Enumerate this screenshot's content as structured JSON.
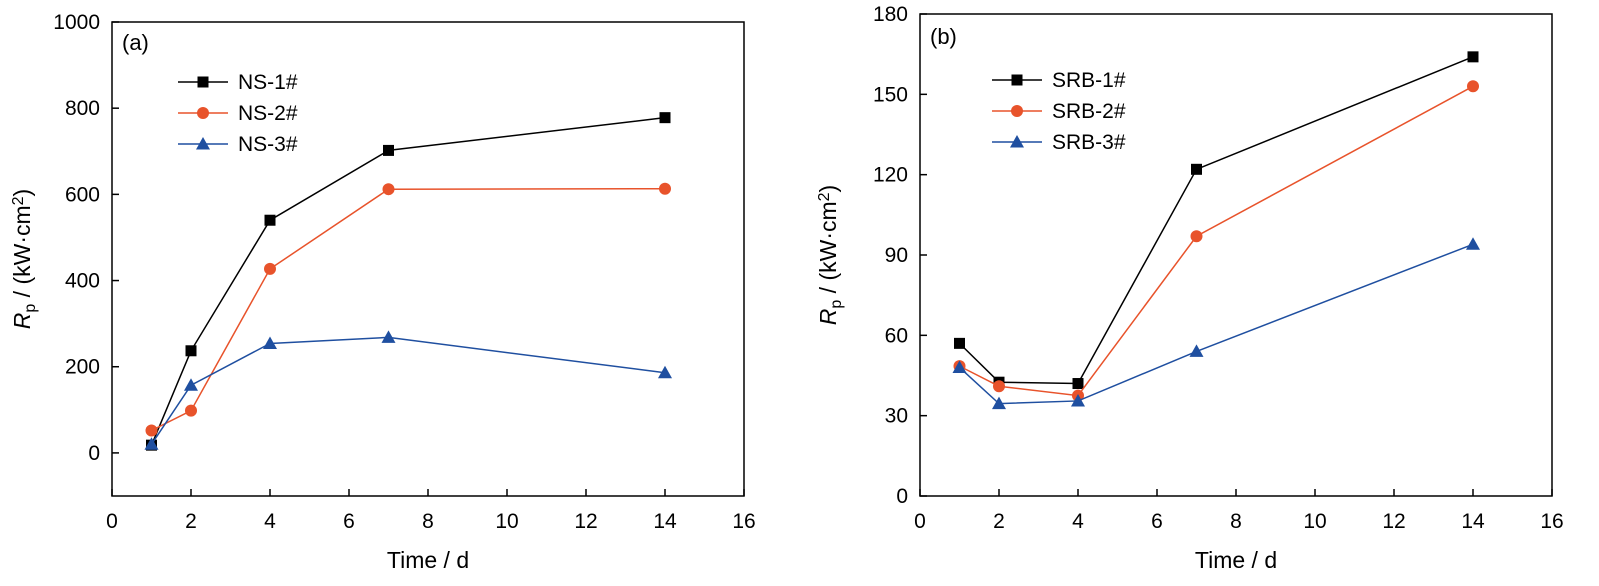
{
  "chart_data": [
    {
      "type": "line",
      "panel_label": "(a)",
      "xlabel": "Time / d",
      "ylabel": {
        "symbol": "R",
        "subscript": "p",
        "unit_prefix": " / (kW·cm",
        "unit_sup": "2",
        "unit_suffix": ")"
      },
      "xlim": [
        0,
        16
      ],
      "ylim": [
        -100,
        1000
      ],
      "xticks": [
        0,
        2,
        4,
        6,
        8,
        10,
        12,
        14,
        16
      ],
      "yticks": [
        0,
        200,
        400,
        600,
        800,
        1000
      ],
      "x": [
        1,
        2,
        4,
        7,
        14
      ],
      "legend_position": "top-left",
      "grid": false,
      "series": [
        {
          "name": "NS-1#",
          "marker": "square",
          "color": "#000000",
          "values": [
            18,
            237,
            540,
            702,
            778
          ]
        },
        {
          "name": "NS-2#",
          "marker": "circle",
          "color": "#e8532b",
          "values": [
            52,
            98,
            427,
            612,
            613
          ]
        },
        {
          "name": "NS-3#",
          "marker": "triangle",
          "color": "#1f4fa0",
          "values": [
            20,
            157,
            254,
            268,
            186
          ]
        }
      ]
    },
    {
      "type": "line",
      "panel_label": "(b)",
      "xlabel": "Time / d",
      "ylabel": {
        "symbol": "R",
        "subscript": "p",
        "unit_prefix": " / (kW·cm",
        "unit_sup": "2",
        "unit_suffix": ")"
      },
      "xlim": [
        0,
        16
      ],
      "ylim": [
        0,
        180
      ],
      "xticks": [
        0,
        2,
        4,
        6,
        8,
        10,
        12,
        14,
        16
      ],
      "yticks": [
        0,
        30,
        60,
        90,
        120,
        150,
        180
      ],
      "x": [
        1,
        2,
        4,
        7,
        14
      ],
      "legend_position": "top-left",
      "grid": false,
      "series": [
        {
          "name": "SRB-1#",
          "marker": "square",
          "color": "#000000",
          "values": [
            57,
            42.5,
            42,
            122,
            164
          ]
        },
        {
          "name": "SRB-2#",
          "marker": "circle",
          "color": "#e8532b",
          "values": [
            48.5,
            41,
            37.5,
            97,
            153
          ]
        },
        {
          "name": "SRB-3#",
          "marker": "triangle",
          "color": "#1f4fa0",
          "values": [
            48,
            34.5,
            35.5,
            54,
            94
          ]
        }
      ]
    }
  ]
}
